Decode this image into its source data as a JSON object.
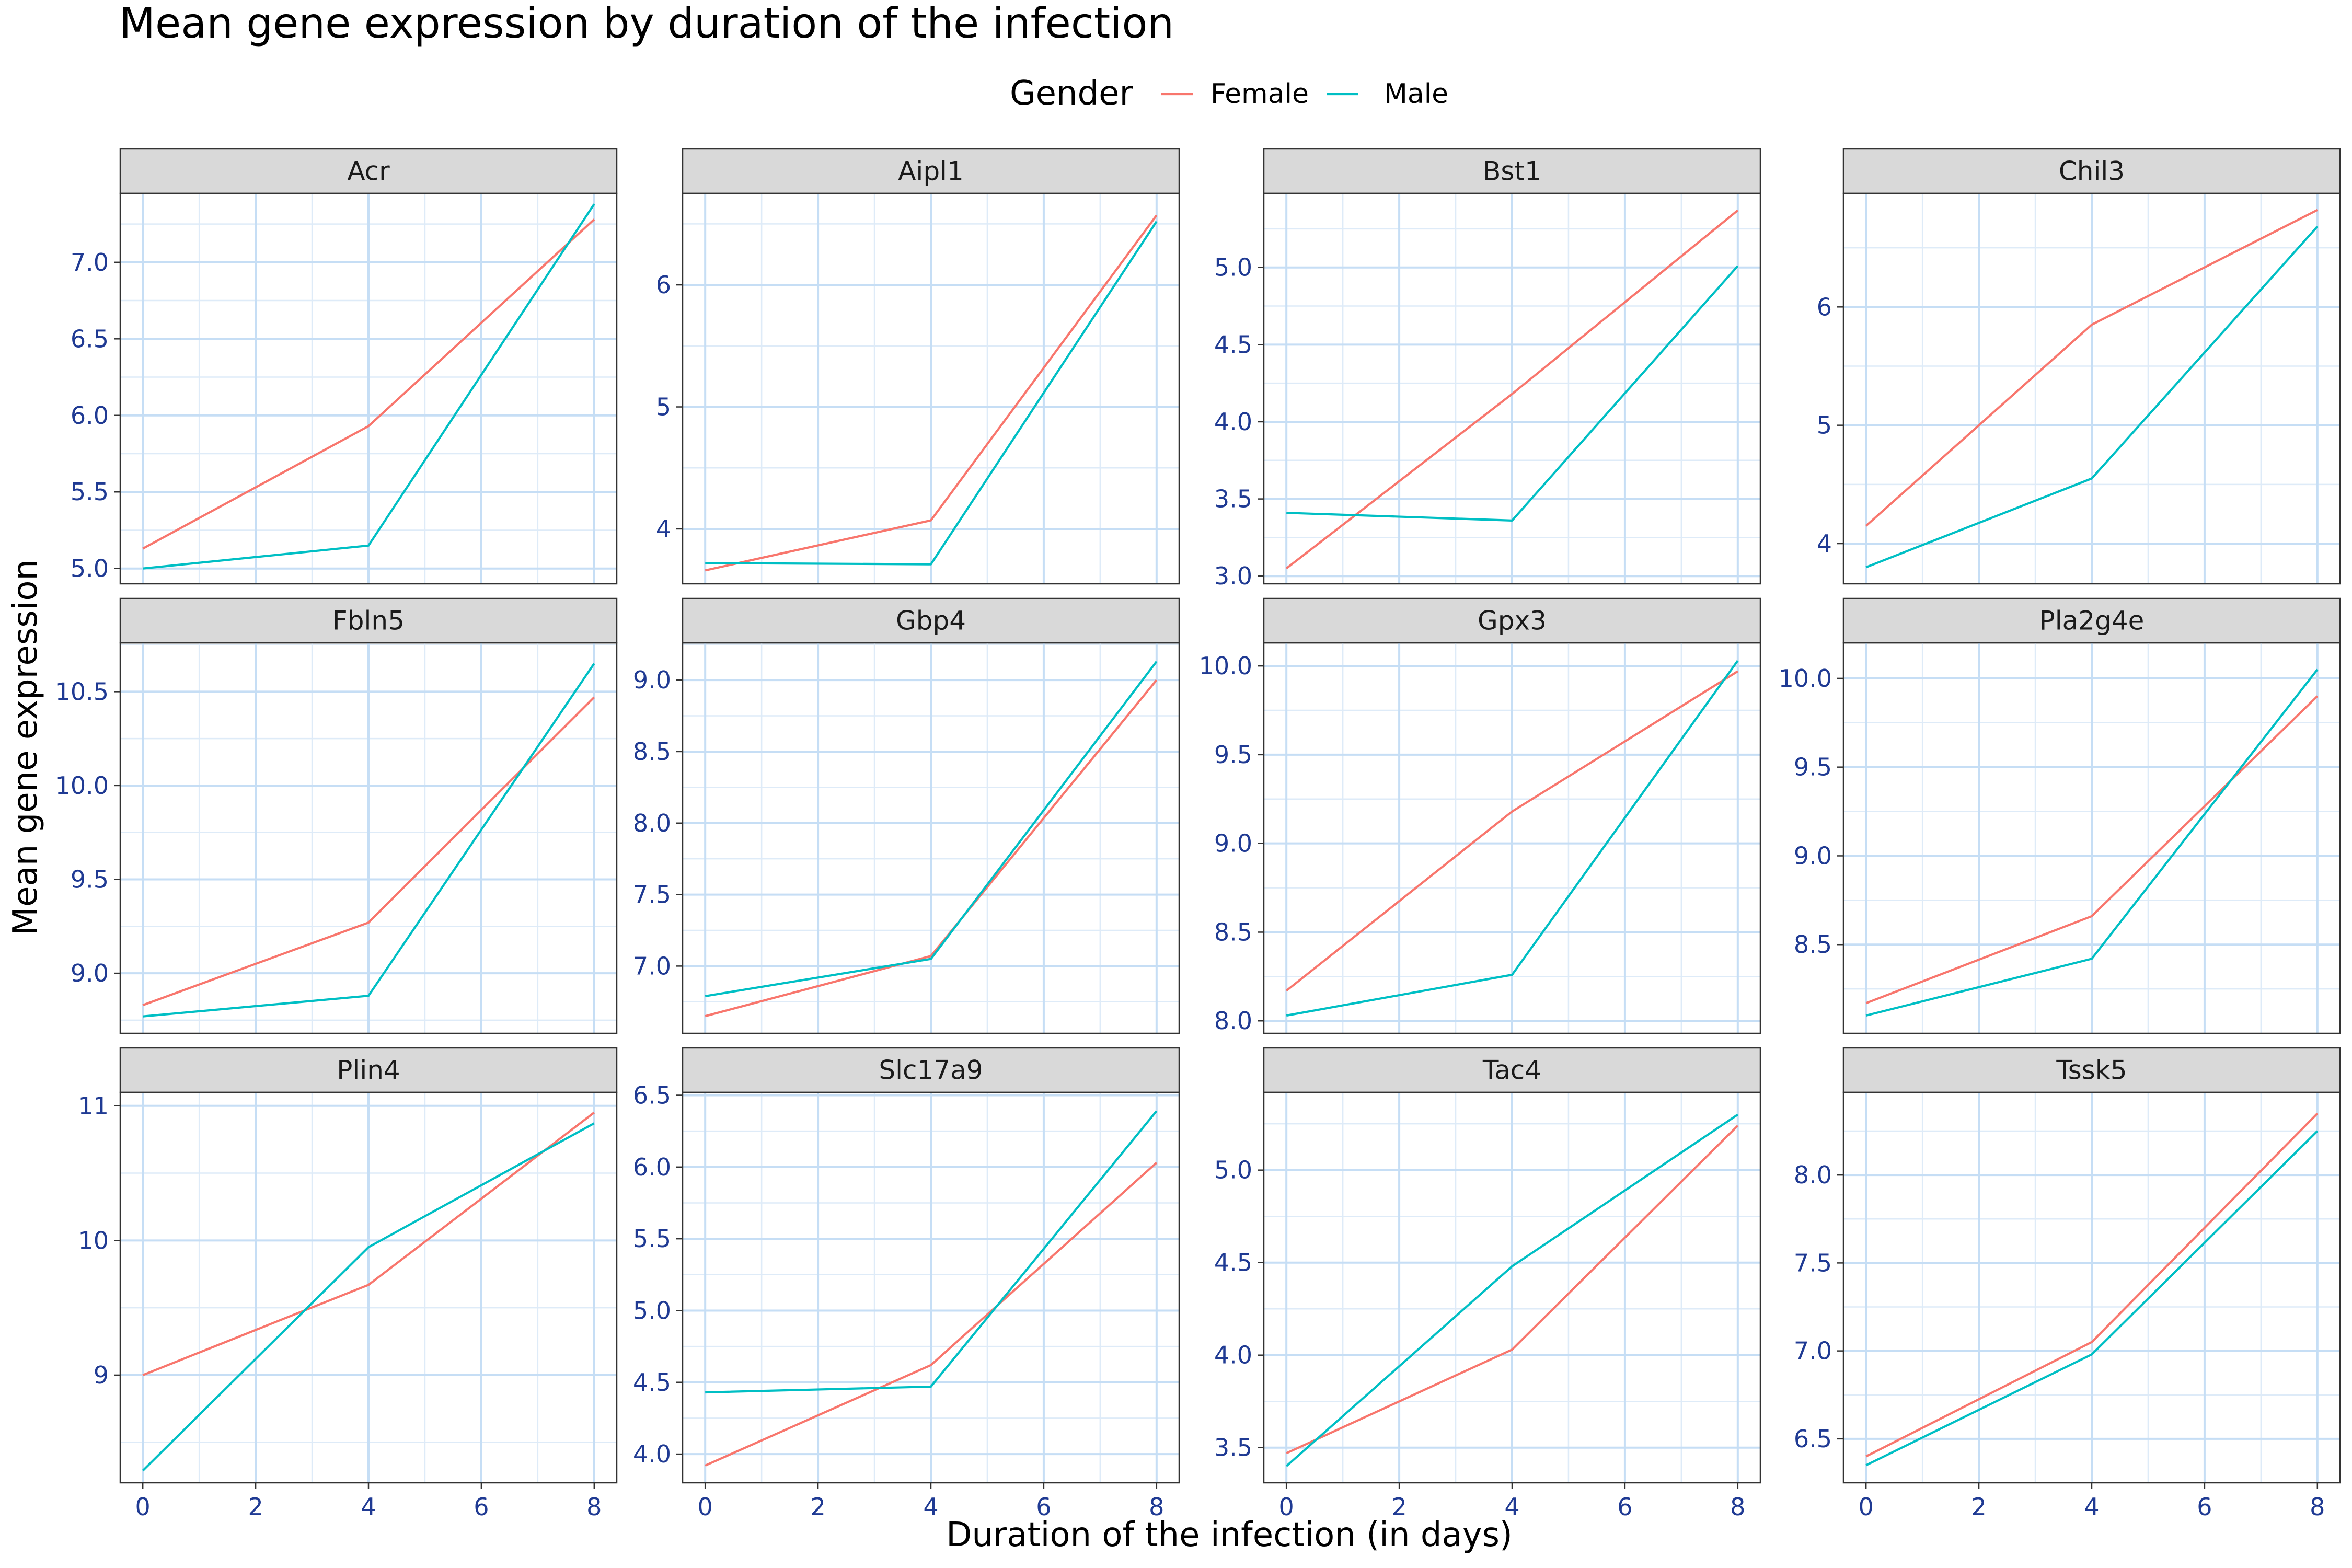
{
  "chart_data": {
    "type": "line",
    "title": "Mean gene expression by duration of the infection",
    "xlabel": "Duration of the infection (in days)",
    "ylabel": "Mean gene expression",
    "legend": {
      "title": "Gender",
      "position": "top",
      "entries": [
        "Female",
        "Male"
      ]
    },
    "series_colors": {
      "Female": "#f8766d",
      "Male": "#00bfc4"
    },
    "x": [
      0,
      4,
      8
    ],
    "xlim": [
      -0.4,
      8.4
    ],
    "x_ticks": [
      0,
      2,
      4,
      6,
      8
    ],
    "x_tick_labels": [
      "0",
      "2",
      "4",
      "6",
      "8"
    ],
    "grid": true,
    "facet_layout": {
      "rows": 3,
      "cols": 4
    },
    "panels": [
      {
        "gene": "Acr",
        "ylim": [
          4.9,
          7.45
        ],
        "y_ticks": [
          5.0,
          5.5,
          6.0,
          6.5,
          7.0
        ],
        "y_tick_labels": [
          "5.0",
          "5.5",
          "6.0",
          "6.5",
          "7.0"
        ],
        "series": [
          {
            "name": "Female",
            "values": [
              5.13,
              5.93,
              7.28
            ]
          },
          {
            "name": "Male",
            "values": [
              5.0,
              5.15,
              7.38
            ]
          }
        ]
      },
      {
        "gene": "Aipl1",
        "ylim": [
          3.55,
          6.75
        ],
        "y_ticks": [
          4,
          5,
          6
        ],
        "y_tick_labels": [
          "4",
          "5",
          "6"
        ],
        "series": [
          {
            "name": "Female",
            "values": [
              3.66,
              4.07,
              6.57
            ]
          },
          {
            "name": "Male",
            "values": [
              3.72,
              3.71,
              6.52
            ]
          }
        ]
      },
      {
        "gene": "Bst1",
        "ylim": [
          2.95,
          5.48
        ],
        "y_ticks": [
          3.0,
          3.5,
          4.0,
          4.5,
          5.0
        ],
        "y_tick_labels": [
          "3.0",
          "3.5",
          "4.0",
          "4.5",
          "5.0"
        ],
        "series": [
          {
            "name": "Female",
            "values": [
              3.05,
              4.18,
              5.37
            ]
          },
          {
            "name": "Male",
            "values": [
              3.41,
              3.36,
              5.01
            ]
          }
        ]
      },
      {
        "gene": "Chil3",
        "ylim": [
          3.66,
          6.96
        ],
        "y_ticks": [
          4,
          5,
          6
        ],
        "y_tick_labels": [
          "4",
          "5",
          "6"
        ],
        "series": [
          {
            "name": "Female",
            "values": [
              4.15,
              5.85,
              6.82
            ]
          },
          {
            "name": "Male",
            "values": [
              3.8,
              4.55,
              6.68
            ]
          }
        ]
      },
      {
        "gene": "Fbln5",
        "ylim": [
          8.68,
          10.76
        ],
        "y_ticks": [
          9.0,
          9.5,
          10.0,
          10.5
        ],
        "y_tick_labels": [
          "9.0",
          "9.5",
          "10.0",
          "10.5"
        ],
        "series": [
          {
            "name": "Female",
            "values": [
              8.83,
              9.27,
              10.47
            ]
          },
          {
            "name": "Male",
            "values": [
              8.77,
              8.88,
              10.65
            ]
          }
        ]
      },
      {
        "gene": "Gbp4",
        "ylim": [
          6.53,
          9.26
        ],
        "y_ticks": [
          7.0,
          7.5,
          8.0,
          8.5,
          9.0
        ],
        "y_tick_labels": [
          "7.0",
          "7.5",
          "8.0",
          "8.5",
          "9.0"
        ],
        "series": [
          {
            "name": "Female",
            "values": [
              6.65,
              7.07,
              9.0
            ]
          },
          {
            "name": "Male",
            "values": [
              6.79,
              7.05,
              9.13
            ]
          }
        ]
      },
      {
        "gene": "Gpx3",
        "ylim": [
          7.93,
          10.13
        ],
        "y_ticks": [
          8.0,
          8.5,
          9.0,
          9.5,
          10.0
        ],
        "y_tick_labels": [
          "8.0",
          "8.5",
          "9.0",
          "9.5",
          "10.0"
        ],
        "series": [
          {
            "name": "Female",
            "values": [
              8.17,
              9.18,
              9.97
            ]
          },
          {
            "name": "Male",
            "values": [
              8.03,
              8.26,
              10.03
            ]
          }
        ]
      },
      {
        "gene": "Pla2g4e",
        "ylim": [
          8.0,
          10.2
        ],
        "y_ticks": [
          8.5,
          9.0,
          9.5,
          10.0
        ],
        "y_tick_labels": [
          "8.5",
          "9.0",
          "9.5",
          "10.0"
        ],
        "series": [
          {
            "name": "Female",
            "values": [
              8.17,
              8.66,
              9.9
            ]
          },
          {
            "name": "Male",
            "values": [
              8.1,
              8.42,
              10.05
            ]
          }
        ]
      },
      {
        "gene": "Plin4",
        "ylim": [
          8.2,
          11.1
        ],
        "y_ticks": [
          9,
          10,
          11
        ],
        "y_tick_labels": [
          "9",
          "10",
          "11"
        ],
        "series": [
          {
            "name": "Female",
            "values": [
              9.0,
              9.67,
              10.95
            ]
          },
          {
            "name": "Male",
            "values": [
              8.29,
              9.95,
              10.87
            ]
          }
        ]
      },
      {
        "gene": "Slc17a9",
        "ylim": [
          3.8,
          6.52
        ],
        "y_ticks": [
          4.0,
          4.5,
          5.0,
          5.5,
          6.0,
          6.5
        ],
        "y_tick_labels": [
          "4.0",
          "4.5",
          "5.0",
          "5.5",
          "6.0",
          "6.5"
        ],
        "series": [
          {
            "name": "Female",
            "values": [
              3.92,
              4.62,
              6.03
            ]
          },
          {
            "name": "Male",
            "values": [
              4.43,
              4.47,
              6.39
            ]
          }
        ]
      },
      {
        "gene": "Tac4",
        "ylim": [
          3.31,
          5.42
        ],
        "y_ticks": [
          3.5,
          4.0,
          4.5,
          5.0
        ],
        "y_tick_labels": [
          "3.5",
          "4.0",
          "4.5",
          "5.0"
        ],
        "series": [
          {
            "name": "Female",
            "values": [
              3.47,
              4.03,
              5.24
            ]
          },
          {
            "name": "Male",
            "values": [
              3.4,
              4.48,
              5.3
            ]
          }
        ]
      },
      {
        "gene": "Tssk5",
        "ylim": [
          6.25,
          8.47
        ],
        "y_ticks": [
          6.5,
          7.0,
          7.5,
          8.0
        ],
        "y_tick_labels": [
          "6.5",
          "7.0",
          "7.5",
          "8.0"
        ],
        "series": [
          {
            "name": "Female",
            "values": [
              6.4,
              7.05,
              8.35
            ]
          },
          {
            "name": "Male",
            "values": [
              6.35,
              6.98,
              8.25
            ]
          }
        ]
      }
    ]
  }
}
